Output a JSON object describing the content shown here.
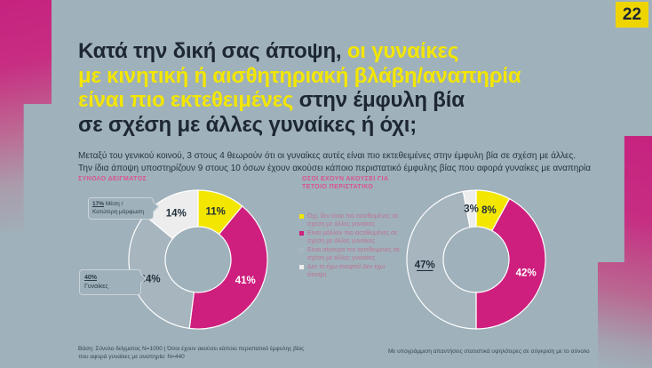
{
  "page": {
    "number": "22",
    "bg_color": "#9fb1ba",
    "accent_magenta": "#c6227f",
    "accent_yellow": "#f3e600",
    "badge_yellow": "#efd500"
  },
  "title": {
    "l1_dark": "Κατά την δική σας άποψη,",
    "l1_yellow": " οι γυναίκες",
    "l2_yellow": "με κινητική ή αισθητηριακή βλάβη/αναπηρία",
    "l3_yellow": "είναι πιο εκτεθειμένες",
    "l3_dark": " στην έμφυλη βία",
    "l4_dark": "σε σχέση με άλλες γυναίκες ή όχι;"
  },
  "subtitle": {
    "line1": "Μεταξύ του γενικού κοινού, 3 στους 4 θεωρούν ότι οι γυναίκες αυτές είναι πιο εκτεθειμένες στην έμφυλη βία σε σχέση με άλλες.",
    "line2": "Την ίδια άποψη υποστηρίζουν 9 στους 10 όσων έχουν ακούσει κάποιο περιστατικό έμφυλης βίας που αφορά γυναίκες με αναπηρία"
  },
  "chart_data": [
    {
      "type": "pie",
      "subtype": "donut",
      "title": "ΣΥΝΟΛΟ ΔΕΙΓΜΑΤΟΣ",
      "categories": [
        "Όχι, δεν είναι πιο εκτεθειμένες σε σχέση με άλλες γυναίκες",
        "Είναι μάλλον πιο εκτεθειμένες σε σχέση με άλλες γυναίκες",
        "Είναι σίγουρα πιο εκτεθειμένες σε σχέση με άλλες γυναίκες",
        "Δεν το έχω σκεφτεί/ Δεν έχω άποψη"
      ],
      "values": [
        11,
        41,
        34,
        14
      ],
      "labels": [
        "11%",
        "41%",
        "34%",
        "14%"
      ],
      "colors": [
        "#f3e600",
        "#ce1f7e",
        "#a6b5be",
        "#ededee"
      ],
      "label_colors": [
        "#20303b",
        "#ffffff",
        "#20303b",
        "#20303b"
      ],
      "underline": [
        false,
        false,
        false,
        false
      ],
      "callouts": [
        {
          "v": "17%",
          "t1": " Μέση /",
          "t2": "Κατώτερη μόρφωση"
        },
        {
          "v": "40%",
          "t1": "",
          "t2": "Γυναίκες"
        }
      ]
    },
    {
      "type": "pie",
      "subtype": "donut",
      "title": "ΟΣΟΙ ΕΧΟΥΝ ΑΚΟΥΣΕΙ ΓΙΑ ΤΕΤΟΙΟ ΠΕΡΙΣΤΑΤΙΚΟ",
      "categories": [
        "Όχι, δεν είναι πιο εκτεθειμένες σε σχέση με άλλες γυναίκες",
        "Είναι μάλλον πιο εκτεθειμένες σε σχέση με άλλες γυναίκες",
        "Είναι σίγουρα πιο εκτεθειμένες σε σχέση με άλλες γυναίκες",
        "Δεν το έχω σκεφτεί/ Δεν έχω άποψη"
      ],
      "values": [
        8,
        42,
        47,
        3
      ],
      "labels": [
        "8%",
        "42%",
        "47%",
        "3%"
      ],
      "colors": [
        "#f3e600",
        "#ce1f7e",
        "#a6b5be",
        "#ededee"
      ],
      "label_colors": [
        "#20303b",
        "#ffffff",
        "#20303b",
        "#20303b"
      ],
      "underline": [
        false,
        false,
        true,
        false
      ]
    }
  ],
  "legend": {
    "items": [
      {
        "label": "Όχι, δεν είναι πιο εκτεθειμένες σε σχέση με άλλες γυναίκες",
        "color": "#f3e600"
      },
      {
        "label": "Είναι μάλλον πιο εκτεθειμένες σε σχέση με άλλες γυναίκες",
        "color": "#ce1f7e"
      },
      {
        "label": "Είναι σίγουρα πιο εκτεθειμένες σε σχέση με άλλες γυναίκες",
        "color": "#a6b5be"
      },
      {
        "label": "Δεν το έχω σκεφτεί/ Δεν έχω άποψη",
        "color": "#ededee"
      }
    ]
  },
  "footers": {
    "left_line1": "Βάση: Σύνολο δείγματος Ν=1000 | Όσοι έχουν ακούσει κάποιο περιστατικό έμφυλης βίας",
    "left_line2": "που αφορά γυναίκες με αναπηρία: Ν=440",
    "right": "Με υπογράμμιση απαντήσεις στατιστικά υψηλότερες σε σύγκριση με το σύνολο"
  }
}
